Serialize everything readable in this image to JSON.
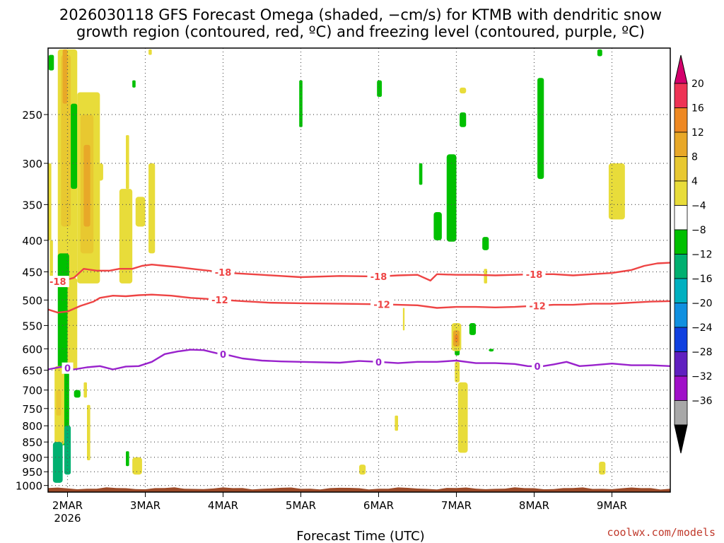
{
  "title": {
    "line1": "2026030118 GFS Forecast Omega (shaded, −cm/s) for KTMB with dendritic snow",
    "line2": "growth region (contoured, red, ºC) and freezing level (contoured, purple, ºC)"
  },
  "credit": "coolwx.com/models",
  "chart_data": {
    "type": "heatmap",
    "xlabel": "Forecast Time (UTC)",
    "ylabel": "",
    "x_hours_range": [
      -6,
      186
    ],
    "y_pressure_range": [
      1025,
      195
    ],
    "x_ticks": [
      {
        "label": "2MAR",
        "sub": "2026",
        "hour": 0
      },
      {
        "label": "3MAR",
        "sub": "",
        "hour": 24
      },
      {
        "label": "4MAR",
        "sub": "",
        "hour": 48
      },
      {
        "label": "5MAR",
        "sub": "",
        "hour": 72
      },
      {
        "label": "6MAR",
        "sub": "",
        "hour": 96
      },
      {
        "label": "7MAR",
        "sub": "",
        "hour": 120
      },
      {
        "label": "8MAR",
        "sub": "",
        "hour": 144
      },
      {
        "label": "9MAR",
        "sub": "",
        "hour": 168
      }
    ],
    "y_ticks": [
      {
        "label": "250",
        "p": 250
      },
      {
        "label": "300",
        "p": 300
      },
      {
        "label": "350",
        "p": 350
      },
      {
        "label": "400",
        "p": 400
      },
      {
        "label": "450",
        "p": 450
      },
      {
        "label": "500",
        "p": 500
      },
      {
        "label": "550",
        "p": 550
      },
      {
        "label": "600",
        "p": 600
      },
      {
        "label": "650",
        "p": 650
      },
      {
        "label": "700",
        "p": 700
      },
      {
        "label": "750",
        "p": 750
      },
      {
        "label": "800",
        "p": 800
      },
      {
        "label": "850",
        "p": 850
      },
      {
        "label": "900",
        "p": 900
      },
      {
        "label": "950",
        "p": 950
      },
      {
        "label": "1000",
        "p": 1000
      }
    ],
    "colorbar": {
      "labels": [
        "20",
        "16",
        "12",
        "8",
        "4",
        "−4",
        "−8",
        "−12",
        "−16",
        "−20",
        "−24",
        "−28",
        "−32",
        "−36"
      ],
      "colors": [
        "#ee3355",
        "#ee8822",
        "#e8a828",
        "#e8c830",
        "#e8dc3a",
        "#ffffff",
        "#00c000",
        "#00b070",
        "#00b0c0",
        "#1090e0",
        "#1040e0",
        "#6020c0",
        "#a010c8",
        "#a8a8a8"
      ],
      "top_arrow_color": "#d4006c",
      "bottom_arrow_color": "#000000"
    },
    "terrain_color": "#9c4a28",
    "contours": [
      {
        "name": "-18C isotherm (DGZ top)",
        "color": "#ee4444",
        "label": "-18",
        "label_hours": [
          -3,
          48,
          96,
          144
        ],
        "points": [
          [
            -6,
            468
          ],
          [
            -2,
            466
          ],
          [
            2,
            460
          ],
          [
            5,
            445
          ],
          [
            9,
            448
          ],
          [
            13,
            448
          ],
          [
            16,
            445
          ],
          [
            20,
            445
          ],
          [
            23,
            440
          ],
          [
            26,
            438
          ],
          [
            30,
            440
          ],
          [
            34,
            442
          ],
          [
            40,
            446
          ],
          [
            45,
            449
          ],
          [
            50,
            452
          ],
          [
            60,
            455
          ],
          [
            72,
            459
          ],
          [
            84,
            457
          ],
          [
            96,
            458
          ],
          [
            102,
            456
          ],
          [
            108,
            455
          ],
          [
            112,
            465
          ],
          [
            114,
            454
          ],
          [
            120,
            455
          ],
          [
            126,
            455
          ],
          [
            132,
            456
          ],
          [
            138,
            455
          ],
          [
            144,
            454
          ],
          [
            150,
            454
          ],
          [
            156,
            456
          ],
          [
            162,
            454
          ],
          [
            168,
            452
          ],
          [
            174,
            447
          ],
          [
            178,
            440
          ],
          [
            182,
            436
          ],
          [
            186,
            435
          ]
        ]
      },
      {
        "name": "-12C isotherm (DGZ bottom)",
        "color": "#ee4444",
        "label": "-12",
        "label_hours": [
          47,
          97,
          145
        ],
        "points": [
          [
            -6,
            518
          ],
          [
            -3,
            524
          ],
          [
            0,
            522
          ],
          [
            4,
            511
          ],
          [
            8,
            503
          ],
          [
            10,
            496
          ],
          [
            14,
            492
          ],
          [
            18,
            493
          ],
          [
            22,
            491
          ],
          [
            26,
            490
          ],
          [
            32,
            492
          ],
          [
            38,
            496
          ],
          [
            46,
            499
          ],
          [
            54,
            502
          ],
          [
            62,
            505
          ],
          [
            72,
            506
          ],
          [
            84,
            507
          ],
          [
            96,
            508
          ],
          [
            102,
            509
          ],
          [
            108,
            510
          ],
          [
            114,
            515
          ],
          [
            120,
            513
          ],
          [
            126,
            513
          ],
          [
            132,
            514
          ],
          [
            138,
            513
          ],
          [
            144,
            511
          ],
          [
            150,
            509
          ],
          [
            156,
            509
          ],
          [
            162,
            507
          ],
          [
            168,
            507
          ],
          [
            174,
            505
          ],
          [
            180,
            503
          ],
          [
            186,
            502
          ]
        ]
      },
      {
        "name": "freezing level (0C)",
        "color": "#9922cc",
        "label": "0",
        "label_hours": [
          0,
          48,
          96,
          145
        ],
        "points": [
          [
            -6,
            648
          ],
          [
            -2,
            642
          ],
          [
            2,
            648
          ],
          [
            6,
            643
          ],
          [
            10,
            640
          ],
          [
            14,
            648
          ],
          [
            18,
            641
          ],
          [
            22,
            640
          ],
          [
            26,
            630
          ],
          [
            30,
            612
          ],
          [
            34,
            606
          ],
          [
            38,
            602
          ],
          [
            42,
            603
          ],
          [
            46,
            610
          ],
          [
            50,
            615
          ],
          [
            54,
            622
          ],
          [
            60,
            627
          ],
          [
            66,
            629
          ],
          [
            72,
            630
          ],
          [
            84,
            632
          ],
          [
            90,
            628
          ],
          [
            96,
            630
          ],
          [
            102,
            633
          ],
          [
            108,
            630
          ],
          [
            114,
            630
          ],
          [
            120,
            627
          ],
          [
            126,
            633
          ],
          [
            132,
            633
          ],
          [
            138,
            635
          ],
          [
            142,
            640
          ],
          [
            146,
            641
          ],
          [
            150,
            636
          ],
          [
            154,
            630
          ],
          [
            158,
            640
          ],
          [
            162,
            638
          ],
          [
            168,
            634
          ],
          [
            174,
            638
          ],
          [
            180,
            638
          ],
          [
            186,
            640
          ]
        ]
      }
    ],
    "omega_cells": [
      {
        "h0": -5.8,
        "h1": -4.2,
        "p0": 200,
        "p1": 212,
        "color": "#00c000"
      },
      {
        "h0": -6,
        "h1": -5,
        "p0": 300,
        "p1": 400,
        "color": "#e8dc3a"
      },
      {
        "h0": -5.5,
        "h1": -4.5,
        "p0": 400,
        "p1": 470,
        "color": "#e8dc3a"
      },
      {
        "h0": -3,
        "h1": 3,
        "p0": 196,
        "p1": 460,
        "color": "#e8dc3a"
      },
      {
        "h0": -2,
        "h1": 1,
        "p0": 200,
        "p1": 380,
        "color": "#e8c830"
      },
      {
        "h0": -1.5,
        "h1": 0,
        "p0": 196,
        "p1": 240,
        "color": "#e8a828"
      },
      {
        "h0": 1,
        "h1": 3,
        "p0": 240,
        "p1": 330,
        "color": "#00c000"
      },
      {
        "h0": 3,
        "h1": 10,
        "p0": 230,
        "p1": 470,
        "color": "#e8dc3a"
      },
      {
        "h0": 4,
        "h1": 8,
        "p0": 250,
        "p1": 420,
        "color": "#e8c830"
      },
      {
        "h0": 5,
        "h1": 7,
        "p0": 280,
        "p1": 380,
        "color": "#e8a828"
      },
      {
        "h0": 9,
        "h1": 11,
        "p0": 300,
        "p1": 320,
        "color": "#e8dc3a"
      },
      {
        "h0": 16,
        "h1": 20,
        "p0": 330,
        "p1": 470,
        "color": "#e8dc3a"
      },
      {
        "h0": 18,
        "h1": 19,
        "p0": 270,
        "p1": 330,
        "color": "#e8dc3a"
      },
      {
        "h0": 21,
        "h1": 24,
        "p0": 340,
        "p1": 380,
        "color": "#e8dc3a"
      },
      {
        "h0": 25,
        "h1": 27,
        "p0": 300,
        "p1": 420,
        "color": "#e8dc3a"
      },
      {
        "h0": -3,
        "h1": 0.5,
        "p0": 420,
        "p1": 860,
        "color": "#00c000"
      },
      {
        "h0": 0,
        "h1": 3,
        "p0": 460,
        "p1": 650,
        "color": "#e8dc3a"
      },
      {
        "h0": -4,
        "h1": -1,
        "p0": 640,
        "p1": 860,
        "color": "#e8dc3a"
      },
      {
        "h0": -3.5,
        "h1": -2,
        "p0": 700,
        "p1": 770,
        "color": "#e8c830"
      },
      {
        "h0": 2,
        "h1": 4,
        "p0": 700,
        "p1": 720,
        "color": "#00c000"
      },
      {
        "h0": 5,
        "h1": 6,
        "p0": 680,
        "p1": 720,
        "color": "#e8dc3a"
      },
      {
        "h0": 6,
        "h1": 7,
        "p0": 740,
        "p1": 910,
        "color": "#e8dc3a"
      },
      {
        "h0": -4.5,
        "h1": -1.5,
        "p0": 850,
        "p1": 990,
        "color": "#00b070"
      },
      {
        "h0": -1,
        "h1": 1,
        "p0": 800,
        "p1": 960,
        "color": "#00b070"
      },
      {
        "h0": 18,
        "h1": 19,
        "p0": 880,
        "p1": 930,
        "color": "#00c000"
      },
      {
        "h0": 20,
        "h1": 23,
        "p0": 900,
        "p1": 960,
        "color": "#e8dc3a"
      },
      {
        "h0": 20,
        "h1": 21,
        "p0": 220,
        "p1": 226,
        "color": "#00c000"
      },
      {
        "h0": 25,
        "h1": 26,
        "p0": 196,
        "p1": 200,
        "color": "#e8dc3a"
      },
      {
        "h0": 71.5,
        "h1": 72.5,
        "p0": 220,
        "p1": 262,
        "color": "#00c000"
      },
      {
        "h0": 95.5,
        "h1": 97,
        "p0": 220,
        "p1": 234,
        "color": "#00c000"
      },
      {
        "h0": 108.5,
        "h1": 109.5,
        "p0": 300,
        "p1": 325,
        "color": "#00c000"
      },
      {
        "h0": 113,
        "h1": 115.5,
        "p0": 360,
        "p1": 400,
        "color": "#00c000"
      },
      {
        "h0": 117,
        "h1": 120,
        "p0": 290,
        "p1": 402,
        "color": "#00c000"
      },
      {
        "h0": 121,
        "h1": 123,
        "p0": 248,
        "p1": 262,
        "color": "#00c000"
      },
      {
        "h0": 121,
        "h1": 123,
        "p0": 226,
        "p1": 231,
        "color": "#e8dc3a"
      },
      {
        "h0": 119.5,
        "h1": 121,
        "p0": 580,
        "p1": 615,
        "color": "#00c000"
      },
      {
        "h0": 118.5,
        "h1": 121.5,
        "p0": 545,
        "p1": 605,
        "color": "#e8dc3a"
      },
      {
        "h0": 119,
        "h1": 121,
        "p0": 560,
        "p1": 595,
        "color": "#e8a828"
      },
      {
        "h0": 119.5,
        "h1": 120.5,
        "p0": 570,
        "p1": 585,
        "color": "#ee8822"
      },
      {
        "h0": 120.5,
        "h1": 123.5,
        "p0": 680,
        "p1": 885,
        "color": "#e8dc3a"
      },
      {
        "h0": 124,
        "h1": 126,
        "p0": 545,
        "p1": 570,
        "color": "#00c000"
      },
      {
        "h0": 119.5,
        "h1": 121,
        "p0": 630,
        "p1": 680,
        "color": "#e8dc3a"
      },
      {
        "h0": 128,
        "h1": 130,
        "p0": 395,
        "p1": 415,
        "color": "#00c000"
      },
      {
        "h0": 128.5,
        "h1": 129.5,
        "p0": 445,
        "p1": 470,
        "color": "#e8dc3a"
      },
      {
        "h0": 130,
        "h1": 131.5,
        "p0": 600,
        "p1": 606,
        "color": "#00c000"
      },
      {
        "h0": 145,
        "h1": 147,
        "p0": 218,
        "p1": 318,
        "color": "#00c000"
      },
      {
        "h0": 101,
        "h1": 102,
        "p0": 770,
        "p1": 815,
        "color": "#e8dc3a"
      },
      {
        "h0": 103.5,
        "h1": 104,
        "p0": 515,
        "p1": 560,
        "color": "#e8dc3a"
      },
      {
        "h0": 90,
        "h1": 92,
        "p0": 925,
        "p1": 960,
        "color": "#e8dc3a"
      },
      {
        "h0": 164,
        "h1": 166,
        "p0": 915,
        "p1": 960,
        "color": "#e8dc3a"
      },
      {
        "h0": 167,
        "h1": 172,
        "p0": 300,
        "p1": 370,
        "color": "#e8dc3a"
      },
      {
        "h0": 163.5,
        "h1": 165,
        "p0": 196,
        "p1": 201,
        "color": "#00c000"
      }
    ]
  }
}
